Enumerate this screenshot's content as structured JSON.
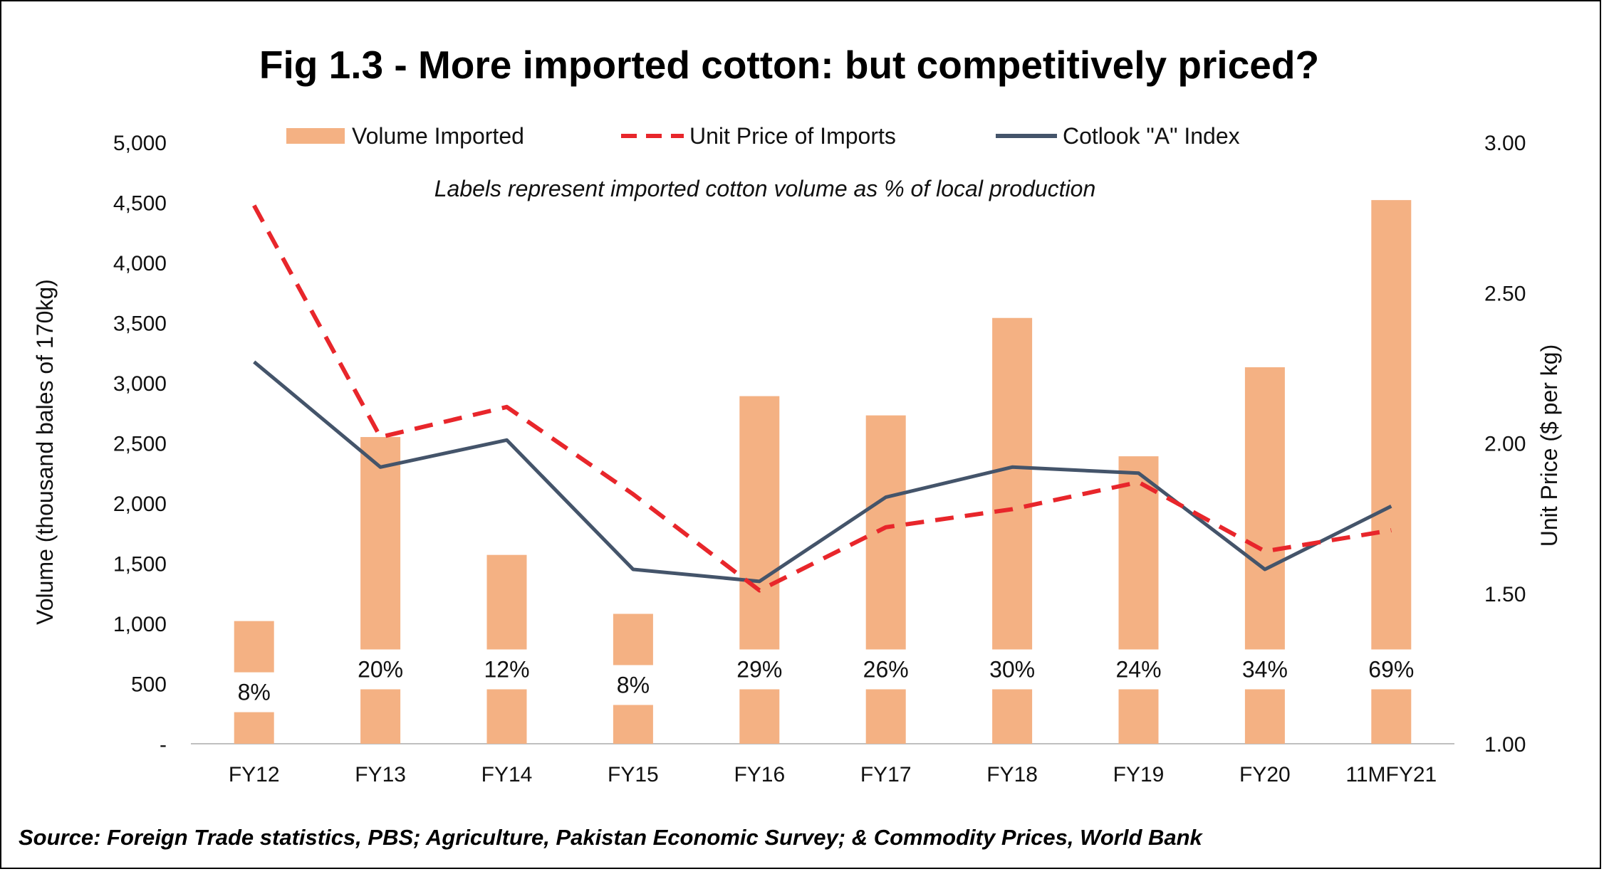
{
  "chart_data": {
    "type": "bar",
    "title": "Fig 1.3 - More imported cotton: but competitively priced?",
    "subtitle": "Labels represent imported cotton volume as % of local production",
    "source": "Source: Foreign Trade statistics, PBS; Agriculture, Pakistan Economic Survey; & Commodity Prices, World Bank",
    "ylabel": "Volume (thousand bales of 170kg)",
    "y2label": "Unit Price ($ per kg)",
    "ylim": [
      0,
      5000
    ],
    "y2lim": [
      1.0,
      3.0
    ],
    "y_ticks": [
      0,
      500,
      1000,
      1500,
      2000,
      2500,
      3000,
      3500,
      4000,
      4500,
      5000
    ],
    "y_tick_labels": [
      "-",
      "500",
      "1,000",
      "1,500",
      "2,000",
      "2,500",
      "3,000",
      "3,500",
      "4,000",
      "4,500",
      "5,000"
    ],
    "y2_ticks": [
      1.0,
      1.5,
      2.0,
      2.5,
      3.0
    ],
    "y2_tick_labels": [
      "1.00",
      "1.50",
      "2.00",
      "2.50",
      "3.00"
    ],
    "categories": [
      "FY12",
      "FY13",
      "FY14",
      "FY15",
      "FY16",
      "FY17",
      "FY18",
      "FY19",
      "FY20",
      "11MFY21"
    ],
    "series": [
      {
        "name": "Volume Imported",
        "type": "bar",
        "axis": "left",
        "color": "#f4b183",
        "values": [
          1020,
          2550,
          1570,
          1080,
          2890,
          2730,
          3540,
          2390,
          3130,
          4520
        ],
        "labels": [
          "8%",
          "20%",
          "12%",
          "8%",
          "29%",
          "26%",
          "30%",
          "24%",
          "34%",
          "69%"
        ]
      },
      {
        "name": "Unit Price of Imports",
        "type": "line",
        "style": "dashed",
        "axis": "right",
        "color": "#e8262b",
        "values": [
          2.79,
          2.02,
          2.12,
          1.83,
          1.51,
          1.72,
          1.78,
          1.87,
          1.64,
          1.71
        ]
      },
      {
        "name": "Cotlook \"A\" Index",
        "type": "line",
        "style": "solid",
        "axis": "right",
        "color": "#44546a",
        "values": [
          2.27,
          1.92,
          2.01,
          1.58,
          1.54,
          1.82,
          1.92,
          1.9,
          1.58,
          1.79
        ]
      }
    ],
    "legend_position": "top",
    "grid": false
  }
}
